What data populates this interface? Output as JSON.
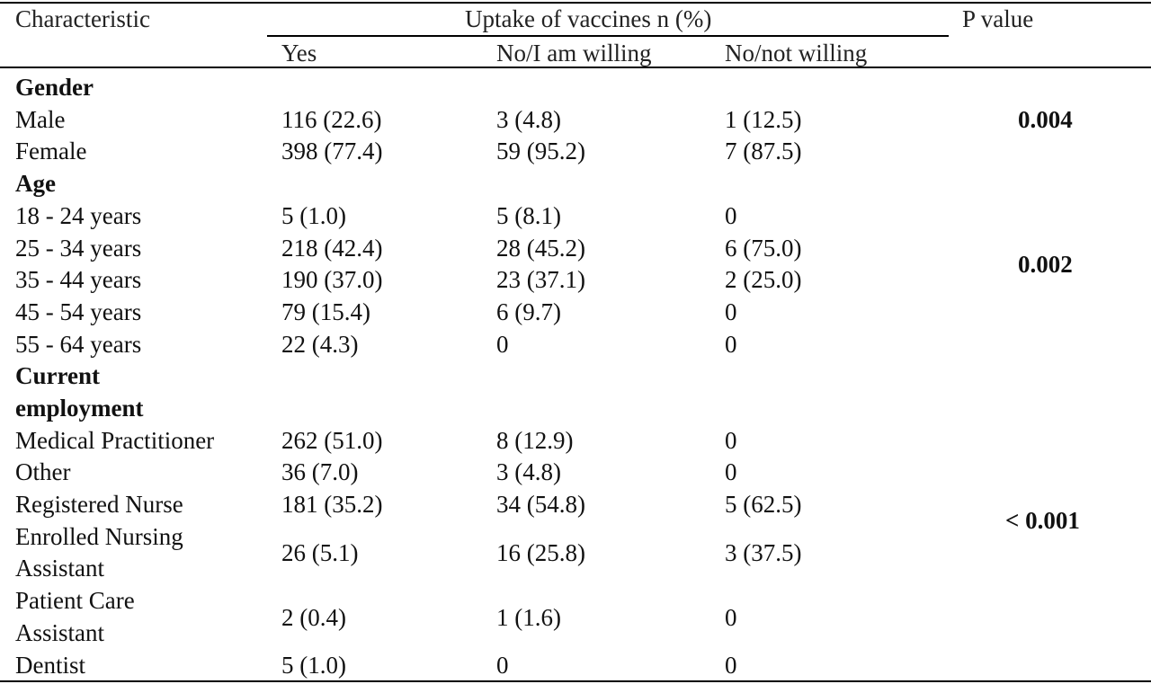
{
  "header": {
    "characteristic": "Characteristic",
    "group": "Uptake of vaccines n (%)",
    "p_value": "P value",
    "yes": "Yes",
    "willing": "No/I am willing",
    "not_willing": "No/not willing"
  },
  "sections": {
    "gender": {
      "title": "Gender",
      "p": "0.004",
      "rows": [
        {
          "label": "Male",
          "yes": "116 (22.6)",
          "willing": "3 (4.8)",
          "not_willing": "1 (12.5)"
        },
        {
          "label": "Female",
          "yes": "398 (77.4)",
          "willing": "59 (95.2)",
          "not_willing": "7 (87.5)"
        }
      ]
    },
    "age": {
      "title": "Age",
      "p": "0.002",
      "rows": [
        {
          "label": "18 - 24 years",
          "yes": "5 (1.0)",
          "willing": "5 (8.1)",
          "not_willing": "0"
        },
        {
          "label": "25 - 34 years",
          "yes": "218 (42.4)",
          "willing": "28 (45.2)",
          "not_willing": "6 (75.0)"
        },
        {
          "label": "35 - 44 years",
          "yes": "190 (37.0)",
          "willing": "23 (37.1)",
          "not_willing": "2 (25.0)"
        },
        {
          "label": "45 - 54 years",
          "yes": "79 (15.4)",
          "willing": "6 (9.7)",
          "not_willing": "0"
        },
        {
          "label": "55 - 64 years",
          "yes": "22 (4.3)",
          "willing": "0",
          "not_willing": "0"
        }
      ]
    },
    "employment": {
      "title_line1": "Current",
      "title_line2": "employment",
      "p": "< 0.001",
      "rows": [
        {
          "label": "Medical Practitioner",
          "yes": "262 (51.0)",
          "willing": "8 (12.9)",
          "not_willing": "0"
        },
        {
          "label": "Other",
          "yes": "36 (7.0)",
          "willing": "3 (4.8)",
          "not_willing": "0"
        },
        {
          "label": "Registered Nurse",
          "yes": "181 (35.2)",
          "willing": "34 (54.8)",
          "not_willing": "5 (62.5)"
        },
        {
          "label_line1": "Enrolled Nursing",
          "label_line2": "Assistant",
          "yes": "26 (5.1)",
          "willing": "16 (25.8)",
          "not_willing": "3 (37.5)"
        },
        {
          "label_line1": "Patient Care",
          "label_line2": "Assistant",
          "yes": "2 (0.4)",
          "willing": "1 (1.6)",
          "not_willing": "0"
        },
        {
          "label": "Dentist",
          "yes": "5 (1.0)",
          "willing": "0",
          "not_willing": "0"
        }
      ]
    }
  }
}
